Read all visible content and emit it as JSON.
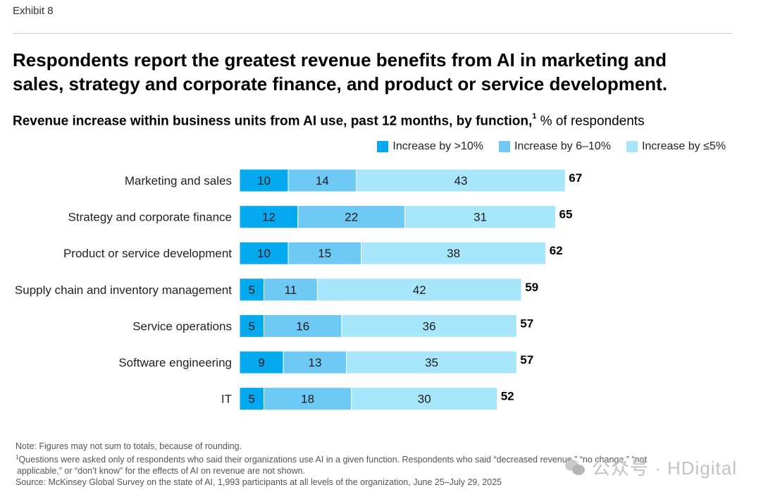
{
  "exhibit_label": "Exhibit 8",
  "headline_line1": "Respondents report the greatest revenue benefits from AI in marketing and",
  "headline_line2": "sales, strategy and corporate finance, and product or service development.",
  "subtitle_main": "Revenue increase within business units from AI use, past 12 months, by function,",
  "subtitle_sup": "1",
  "subtitle_unit": " % of respondents",
  "colors": {
    "gt10": "#05A9EE",
    "six_ten": "#6ECAF5",
    "le5": "#A8E6FC"
  },
  "legend": [
    {
      "label": "Increase by >10%",
      "color": "#05A9EE"
    },
    {
      "label": "Increase by 6–10%",
      "color": "#6ECAF5"
    },
    {
      "label": "Increase by ≤5%",
      "color": "#A8E6FC"
    }
  ],
  "chart_data": {
    "type": "bar",
    "orientation": "horizontal",
    "stacked": true,
    "unit": "% of respondents",
    "categories": [
      "Marketing and sales",
      "Strategy and corporate finance",
      "Product or service development",
      "Supply chain and inventory management",
      "Service operations",
      "Software engineering",
      "IT"
    ],
    "series": [
      {
        "name": "Increase by >10%",
        "values": [
          10,
          12,
          10,
          5,
          5,
          9,
          5
        ]
      },
      {
        "name": "Increase by 6–10%",
        "values": [
          14,
          22,
          15,
          11,
          16,
          13,
          18
        ]
      },
      {
        "name": "Increase by ≤5%",
        "values": [
          43,
          31,
          38,
          42,
          36,
          35,
          30
        ]
      }
    ],
    "totals": [
      67,
      65,
      62,
      59,
      57,
      57,
      52
    ]
  },
  "footnotes": {
    "note": "Note: Figures may not sum to totals, because of rounding.",
    "fn1_marker": "1",
    "fn1_line1": "Questions were asked only of respondents who said their organizations use AI in a given function. Respondents who said “decreased revenue,” “no change,” “not",
    "fn1_line2": "applicable,” or “don’t know” for the effects of AI on revenue are not shown.",
    "source": "Source: McKinsey Global Survey on the state of AI, 1,993 participants at all levels of the organization, June 25–July 29, 2025"
  },
  "watermark": "公众号 · HDigital"
}
